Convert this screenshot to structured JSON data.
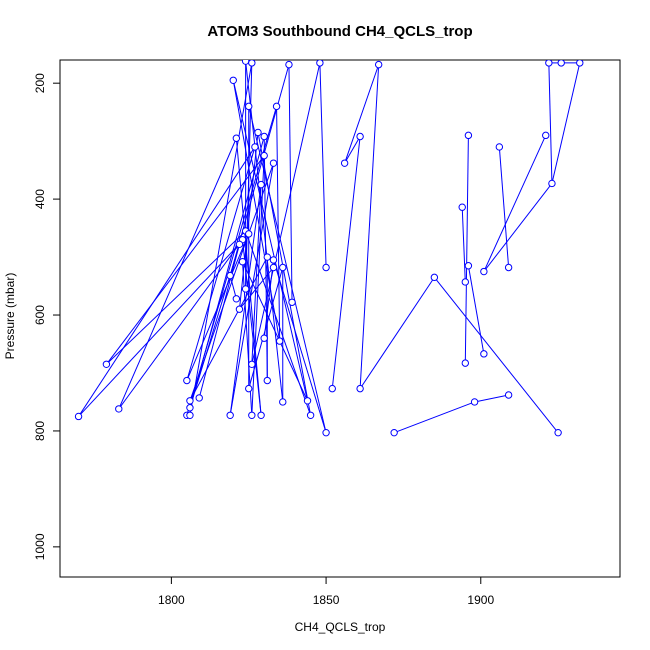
{
  "chart_data": {
    "type": "line",
    "title": "ATOM3 Southbound CH4_QCLS_trop",
    "xlabel": "CH4_QCLS_trop",
    "ylabel": "Pressure (mbar)",
    "xlim": [
      1764,
      1945
    ],
    "ylim": [
      1052,
      160
    ],
    "y_reversed": true,
    "x_ticks": [
      1800,
      1850,
      1900
    ],
    "y_ticks": [
      200,
      400,
      600,
      800,
      1000
    ],
    "grid": false,
    "marker": "open-circle",
    "colors": {
      "series": "#0000ff",
      "axis": "#000000",
      "background": "#ffffff"
    },
    "series": [
      {
        "points": [
          [
            1824,
            162
          ],
          [
            1820,
            195
          ],
          [
            1821,
            295
          ],
          [
            1827,
            310
          ],
          [
            1830,
            325
          ],
          [
            1833,
            338
          ],
          [
            1828,
            285
          ],
          [
            1830,
            292
          ],
          [
            1825,
            240
          ],
          [
            1834,
            240
          ],
          [
            1826,
            165
          ],
          [
            1829,
            375
          ],
          [
            1823,
            470
          ],
          [
            1824,
            455
          ],
          [
            1825,
            460
          ],
          [
            1822,
            478
          ],
          [
            1823,
            508
          ],
          [
            1831,
            500
          ],
          [
            1833,
            505
          ],
          [
            1836,
            518
          ],
          [
            1833,
            518
          ],
          [
            1819,
            532
          ],
          [
            1824,
            555
          ],
          [
            1822,
            590
          ],
          [
            1821,
            572
          ],
          [
            1839,
            578
          ],
          [
            1835,
            645
          ],
          [
            1830,
            640
          ],
          [
            1826,
            685
          ],
          [
            1831,
            713
          ],
          [
            1836,
            750
          ],
          [
            1845,
            773
          ],
          [
            1844,
            748
          ],
          [
            1850,
            803
          ],
          [
            1829,
            773
          ],
          [
            1826,
            773
          ],
          [
            1819,
            773
          ],
          [
            1809,
            743
          ],
          [
            1806,
            748
          ],
          [
            1806,
            760
          ],
          [
            1805,
            773
          ],
          [
            1806,
            773
          ],
          [
            1805,
            713
          ],
          [
            1825,
            727
          ],
          [
            1783,
            762
          ],
          [
            1779,
            685
          ],
          [
            1770,
            775
          ],
          [
            1838,
            168
          ],
          [
            1848,
            165
          ],
          [
            1850,
            518
          ],
          [
            1856,
            338
          ],
          [
            1861,
            292
          ],
          [
            1852,
            727
          ],
          [
            1867,
            168
          ],
          [
            1861,
            727
          ],
          [
            1872,
            803
          ],
          [
            1898,
            750
          ],
          [
            1885,
            535
          ],
          [
            1925,
            803
          ],
          [
            1909,
            738
          ],
          [
            1896,
            515
          ],
          [
            1894,
            414
          ],
          [
            1895,
            543
          ],
          [
            1896,
            290
          ],
          [
            1895,
            683
          ],
          [
            1901,
            667
          ],
          [
            1906,
            310
          ],
          [
            1909,
            518
          ],
          [
            1921,
            290
          ],
          [
            1901,
            525
          ],
          [
            1923,
            373
          ],
          [
            1922,
            165
          ],
          [
            1926,
            165
          ],
          [
            1932,
            165
          ]
        ],
        "segments": [
          [
            0,
            22
          ],
          [
            1,
            26
          ],
          [
            2,
            34
          ],
          [
            3,
            42
          ],
          [
            4,
            35
          ],
          [
            5,
            38
          ],
          [
            6,
            31
          ],
          [
            7,
            39
          ],
          [
            8,
            43
          ],
          [
            9,
            40
          ],
          [
            10,
            41
          ],
          [
            11,
            36
          ],
          [
            12,
            44
          ],
          [
            13,
            45
          ],
          [
            14,
            46
          ],
          [
            15,
            37
          ],
          [
            16,
            32
          ],
          [
            17,
            29
          ],
          [
            18,
            33
          ],
          [
            19,
            30
          ],
          [
            20,
            23
          ],
          [
            21,
            24
          ],
          [
            47,
            21
          ],
          [
            47,
            25
          ],
          [
            48,
            49
          ],
          [
            48,
            28
          ],
          [
            53,
            50
          ],
          [
            53,
            54
          ],
          [
            50,
            51
          ],
          [
            51,
            52
          ],
          [
            57,
            58
          ],
          [
            57,
            54
          ],
          [
            55,
            56
          ],
          [
            56,
            59
          ],
          [
            60,
            65
          ],
          [
            61,
            62
          ],
          [
            63,
            64
          ],
          [
            66,
            67
          ],
          [
            68,
            69
          ],
          [
            69,
            70
          ],
          [
            70,
            71
          ],
          [
            71,
            72
          ],
          [
            72,
            73
          ],
          [
            73,
            70
          ],
          [
            6,
            23
          ],
          [
            9,
            26
          ],
          [
            12,
            34
          ],
          [
            14,
            42
          ],
          [
            18,
            27
          ],
          [
            15,
            39
          ],
          [
            2,
            44
          ],
          [
            11,
            28
          ],
          [
            5,
            36
          ],
          [
            19,
            43
          ],
          [
            4,
            45
          ],
          [
            3,
            46
          ],
          [
            16,
            35
          ],
          [
            13,
            31
          ],
          [
            8,
            33
          ],
          [
            7,
            29
          ],
          [
            17,
            38
          ],
          [
            10,
            22
          ],
          [
            0,
            30
          ],
          [
            1,
            32
          ]
        ]
      }
    ]
  }
}
